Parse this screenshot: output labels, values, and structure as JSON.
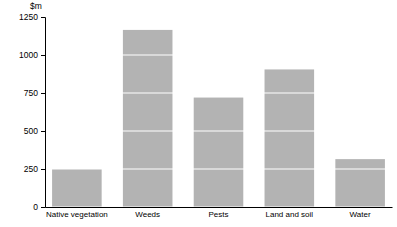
{
  "chart_data": {
    "type": "bar",
    "y_label": "$m",
    "categories": [
      "Native vegetation",
      "Weeds",
      "Pests",
      "Land and soil",
      "Water"
    ],
    "values": [
      250,
      1165,
      720,
      905,
      315
    ],
    "color": "#b3b3b3",
    "ylim": [
      0,
      1250
    ],
    "yticks": [
      0,
      250,
      500,
      750,
      1000,
      1250
    ],
    "grid": true
  }
}
